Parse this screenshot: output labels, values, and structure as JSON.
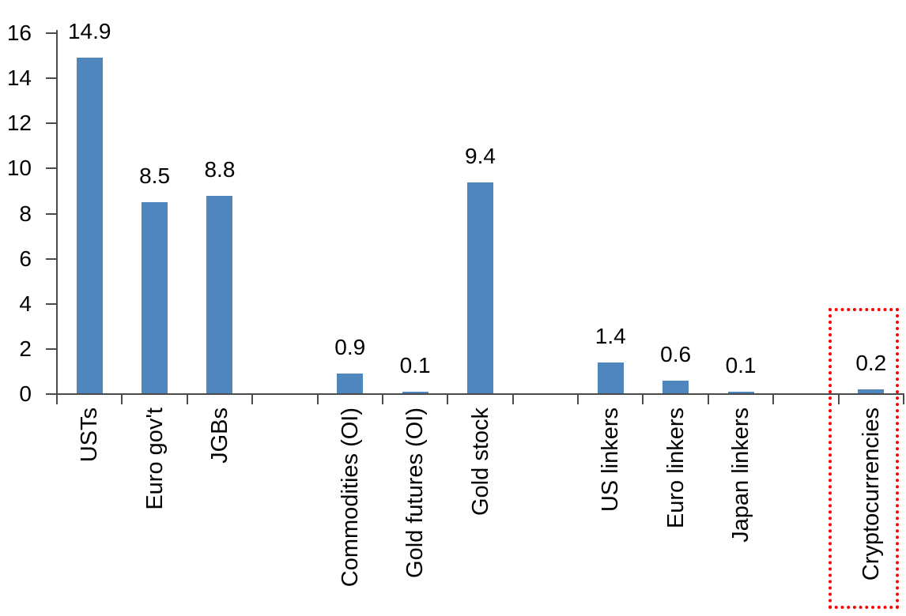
{
  "page": {
    "background": "#FFFFFF"
  },
  "chart_data": {
    "type": "bar",
    "categories": [
      "USTs",
      "Euro gov't",
      "JGBs",
      "Commodities (OI)",
      "Gold futures (OI)",
      "Gold stock",
      "US linkers",
      "Euro linkers",
      "Japan linkers",
      "Cryptocurrencies"
    ],
    "values": [
      14.9,
      8.5,
      8.8,
      0.9,
      0.1,
      9.4,
      1.4,
      0.6,
      0.1,
      0.2
    ],
    "data_labels": [
      "14.9",
      "8.5",
      "8.8",
      "0.9",
      "0.1",
      "9.4",
      "1.4",
      "0.6",
      "0.1",
      "0.2"
    ],
    "slot_of_category": [
      0,
      1,
      2,
      4,
      5,
      6,
      8,
      9,
      10,
      12
    ],
    "n_slots": 13,
    "ylim": [
      0,
      16
    ],
    "y_ticks": [
      0,
      2,
      4,
      6,
      8,
      10,
      12,
      14,
      16
    ],
    "y_tick_labels": [
      "0",
      "2",
      "4",
      "6",
      "8",
      "10",
      "12",
      "14",
      "16"
    ],
    "xlabel": "",
    "ylabel": "",
    "grid": false,
    "legend": false,
    "bar_color": "#4E86BD",
    "axis_color": "#4A4A4A",
    "text_color": "#000000",
    "highlight": {
      "category": "Cryptocurrencies",
      "shape": "dotted-rectangle",
      "color": "#FF0000"
    }
  }
}
